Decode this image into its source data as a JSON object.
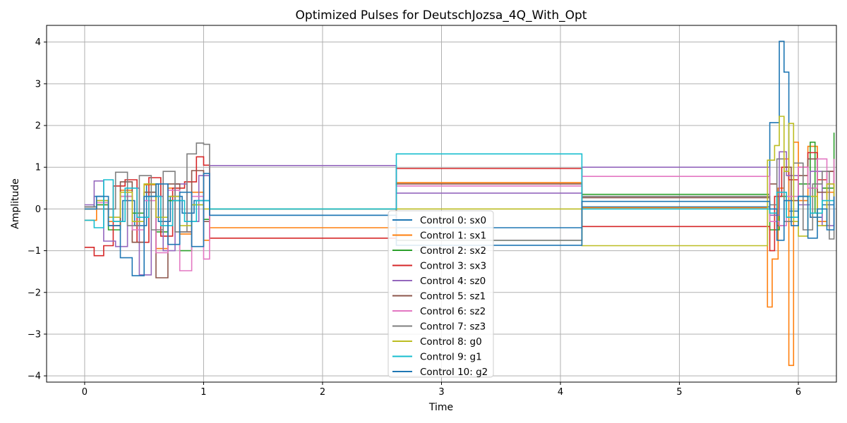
{
  "chart_data": {
    "type": "line",
    "step": true,
    "title": "Optimized Pulses for DeutschJozsa_4Q_With_Opt",
    "xlabel": "Time",
    "ylabel": "Amplitude",
    "xlim": [
      -0.32,
      6.32
    ],
    "ylim": [
      -4.15,
      4.4
    ],
    "xticks": [
      0,
      1,
      2,
      3,
      4,
      5,
      6
    ],
    "xtick_labels": [
      "0",
      "1",
      "2",
      "3",
      "4",
      "5",
      "6"
    ],
    "yticks": [
      -4,
      -3,
      -2,
      -1,
      0,
      1,
      2,
      3,
      4
    ],
    "ytick_labels": [
      "−4",
      "−3",
      "−2",
      "−1",
      "0",
      "1",
      "2",
      "3",
      "4"
    ],
    "grid": true,
    "legend_position": "lower-center",
    "series": [
      {
        "name": "Control 0: sx0",
        "color": "#1f77b4",
        "x": [
          0,
          0.08,
          0.16,
          0.24,
          0.32,
          0.42,
          0.52,
          0.62,
          0.72,
          0.82,
          0.92,
          1.05,
          2.62,
          4.18,
          5.76,
          5.84,
          5.88,
          5.92,
          6.0,
          6.1,
          6.2,
          6.3
        ],
        "y": [
          0.05,
          0.3,
          0.0,
          -0.3,
          0.2,
          -0.4,
          0.6,
          -0.3,
          0.3,
          -0.1,
          0.2,
          -0.15,
          -0.45,
          0.05,
          2.07,
          4.02,
          3.28,
          -0.05,
          0.3,
          -0.2,
          0.1,
          0.3
        ]
      },
      {
        "name": "Control 1: sx1",
        "color": "#ff7f0e",
        "x": [
          0,
          0.1,
          0.2,
          0.3,
          0.4,
          0.5,
          0.6,
          0.7,
          0.8,
          0.9,
          1.0,
          1.05,
          2.62,
          4.18,
          5.74,
          5.78,
          5.83,
          5.88,
          5.92,
          5.96,
          6.0,
          6.08,
          6.16,
          6.24,
          6.3
        ],
        "y": [
          -0.27,
          0.1,
          -0.3,
          0.45,
          -0.8,
          0.58,
          -0.95,
          0.5,
          -0.6,
          0.4,
          -0.75,
          -0.45,
          0.63,
          0.03,
          -2.35,
          -1.2,
          0.5,
          1.2,
          -3.75,
          1.6,
          0.2,
          1.5,
          -0.3,
          0.4,
          0.2
        ]
      },
      {
        "name": "Control 2: sx2",
        "color": "#2ca02c",
        "x": [
          0,
          0.1,
          0.2,
          0.3,
          0.4,
          0.5,
          0.6,
          0.7,
          0.8,
          0.9,
          1.0,
          1.05,
          2.62,
          4.18,
          5.76,
          5.84,
          5.9,
          6.0,
          6.1,
          6.14,
          6.2,
          6.3
        ],
        "y": [
          0.0,
          0.1,
          -0.5,
          0.3,
          -0.1,
          0.4,
          -0.55,
          0.2,
          -1.0,
          0.1,
          -0.25,
          0.0,
          -0.75,
          0.35,
          -0.5,
          0.3,
          -0.2,
          0.6,
          1.6,
          -0.1,
          0.5,
          1.83
        ]
      },
      {
        "name": "Control 3: sx3",
        "color": "#d62728",
        "x": [
          0,
          0.08,
          0.16,
          0.24,
          0.34,
          0.44,
          0.54,
          0.64,
          0.74,
          0.84,
          0.94,
          1.0,
          1.05,
          2.62,
          4.18,
          5.76,
          5.8,
          5.86,
          5.92,
          6.0,
          6.08,
          6.16,
          6.24,
          6.3
        ],
        "y": [
          -0.92,
          -1.12,
          -0.88,
          0.55,
          0.7,
          -0.8,
          0.75,
          -0.65,
          0.5,
          0.65,
          1.25,
          1.05,
          -0.7,
          0.97,
          -0.42,
          -1.0,
          0.3,
          1.0,
          0.7,
          1.0,
          1.35,
          0.7,
          0.9,
          0.5
        ]
      },
      {
        "name": "Control 4: sz0",
        "color": "#9467bd",
        "x": [
          0,
          0.08,
          0.16,
          0.26,
          0.36,
          0.46,
          0.56,
          0.66,
          0.76,
          0.86,
          0.96,
          1.05,
          2.62,
          4.18,
          5.76,
          5.84,
          5.9,
          6.0,
          6.1,
          6.2,
          6.3
        ],
        "y": [
          0.1,
          0.67,
          -0.77,
          -0.9,
          0.5,
          -1.58,
          0.3,
          -1.0,
          0.6,
          -0.3,
          0.8,
          1.04,
          0.38,
          1.0,
          -0.15,
          1.37,
          0.8,
          0.1,
          0.9,
          -0.4,
          0.7
        ]
      },
      {
        "name": "Control 5: sz1",
        "color": "#8c564b",
        "x": [
          0,
          0.1,
          0.2,
          0.3,
          0.4,
          0.5,
          0.6,
          0.7,
          0.8,
          0.9,
          1.0,
          1.05,
          2.62,
          4.18,
          5.76,
          5.82,
          5.88,
          5.94,
          6.0,
          6.08,
          6.16,
          6.24,
          6.3
        ],
        "y": [
          0.05,
          0.2,
          -0.4,
          0.65,
          -0.8,
          0.4,
          -1.65,
          0.6,
          -0.55,
          0.92,
          -0.3,
          0.0,
          0.6,
          0.27,
          0.6,
          -0.4,
          1.0,
          0.2,
          0.8,
          1.2,
          0.4,
          0.9,
          0.5
        ]
      },
      {
        "name": "Control 6: sz2",
        "color": "#e377c2",
        "x": [
          0,
          0.1,
          0.2,
          0.3,
          0.4,
          0.5,
          0.6,
          0.7,
          0.8,
          0.9,
          1.0,
          1.05,
          2.62,
          4.18,
          5.76,
          5.84,
          5.9,
          6.0,
          6.08,
          6.16,
          6.24,
          6.3
        ],
        "y": [
          0.0,
          0.15,
          -0.2,
          0.3,
          -0.5,
          0.2,
          -1.05,
          0.45,
          -1.48,
          0.3,
          -1.2,
          0.0,
          0.55,
          0.78,
          -0.3,
          -0.4,
          0.3,
          1.0,
          0.5,
          1.2,
          0.6,
          1.2
        ]
      },
      {
        "name": "Control 7: sz3",
        "color": "#7f7f7f",
        "x": [
          0,
          0.1,
          0.2,
          0.26,
          0.36,
          0.46,
          0.56,
          0.66,
          0.76,
          0.86,
          0.94,
          1.0,
          1.05,
          2.62,
          4.18,
          5.76,
          5.82,
          5.88,
          5.96,
          6.04,
          6.12,
          6.2,
          6.26,
          6.3
        ],
        "y": [
          0.05,
          0.0,
          0.0,
          0.88,
          -0.4,
          0.8,
          -0.5,
          0.9,
          -0.55,
          1.32,
          1.58,
          1.55,
          0.0,
          -0.75,
          0.3,
          0.1,
          1.2,
          -0.3,
          1.1,
          -0.5,
          0.6,
          0.9,
          -0.72,
          0.0
        ]
      },
      {
        "name": "Control 8: g0",
        "color": "#bcbd22",
        "x": [
          0,
          0.1,
          0.2,
          0.3,
          0.4,
          0.5,
          0.6,
          0.7,
          0.8,
          0.9,
          1.0,
          1.05,
          2.62,
          4.18,
          5.74,
          5.8,
          5.84,
          5.88,
          5.92,
          5.96,
          6.0,
          6.08,
          6.16,
          6.24,
          6.3
        ],
        "y": [
          0.0,
          0.2,
          -0.2,
          0.4,
          -0.3,
          0.6,
          -0.2,
          0.3,
          -0.4,
          0.1,
          0.0,
          0.0,
          0.0,
          -0.88,
          1.17,
          1.52,
          2.22,
          0.9,
          2.05,
          -0.3,
          -0.65,
          0.3,
          -0.4,
          0.6,
          0.3
        ]
      },
      {
        "name": "Control 9: g1",
        "color": "#17becf",
        "x": [
          0,
          0.08,
          0.16,
          0.24,
          0.34,
          0.44,
          0.54,
          0.64,
          0.74,
          0.84,
          0.94,
          1.05,
          2.62,
          4.18,
          5.76,
          5.82,
          5.9,
          6.0,
          6.1,
          6.2,
          6.3
        ],
        "y": [
          -0.27,
          -0.45,
          0.7,
          -0.3,
          0.5,
          -0.2,
          0.3,
          -0.4,
          0.2,
          -0.3,
          0.2,
          0.0,
          1.32,
          0.0,
          -0.1,
          0.4,
          -0.2,
          0.3,
          -0.1,
          0.2,
          0.0
        ]
      },
      {
        "name": "Control 10: g2",
        "color": "#1f77b4",
        "x": [
          0,
          0.1,
          0.2,
          0.3,
          0.4,
          0.5,
          0.6,
          0.7,
          0.8,
          0.9,
          1.0,
          1.05,
          2.62,
          4.18,
          5.76,
          5.82,
          5.88,
          5.94,
          6.0,
          6.08,
          6.16,
          6.24,
          6.3
        ],
        "y": [
          0.0,
          0.3,
          -0.4,
          -1.17,
          -1.6,
          0.3,
          0.6,
          -0.85,
          0.4,
          -0.9,
          0.85,
          -0.15,
          -0.87,
          0.18,
          0.0,
          -0.75,
          0.2,
          -0.4,
          0.3,
          -0.7,
          0.0,
          -0.5,
          0.3
        ]
      }
    ]
  }
}
